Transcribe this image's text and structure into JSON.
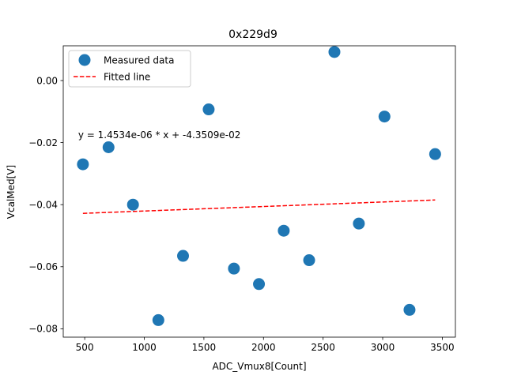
{
  "chart_data": {
    "type": "scatter",
    "title": "0x229d9",
    "xlabel": "ADC_Vmux8[Count]",
    "ylabel": "VcalMed[V]",
    "xlim": [
      320,
      3610
    ],
    "ylim": [
      -0.0827,
      0.0112
    ],
    "xticks": [
      {
        "value": 500,
        "label": "500"
      },
      {
        "value": 1000,
        "label": "1000"
      },
      {
        "value": 1500,
        "label": "1500"
      },
      {
        "value": 2000,
        "label": "2000"
      },
      {
        "value": 2500,
        "label": "2500"
      },
      {
        "value": 3000,
        "label": "3000"
      },
      {
        "value": 3500,
        "label": "3500"
      }
    ],
    "yticks": [
      {
        "value": -0.08,
        "label": "−0.08"
      },
      {
        "value": -0.06,
        "label": "−0.06"
      },
      {
        "value": -0.04,
        "label": "−0.04"
      },
      {
        "value": -0.02,
        "label": "−0.02"
      },
      {
        "value": 0.0,
        "label": "0.00"
      }
    ],
    "series": [
      {
        "name": "Measured data",
        "kind": "scatter",
        "color": "#1f77b4",
        "x": [
          485,
          700,
          905,
          1118,
          1325,
          1540,
          1752,
          1962,
          2170,
          2383,
          2595,
          2800,
          3015,
          3225,
          3440
        ],
        "y": [
          -0.027,
          -0.0215,
          -0.04,
          -0.0772,
          -0.0565,
          -0.0093,
          -0.0606,
          -0.0656,
          -0.0484,
          -0.0579,
          0.0092,
          -0.0461,
          -0.0116,
          -0.0739,
          -0.0237
        ]
      },
      {
        "name": "Fitted line",
        "kind": "line",
        "style": "dashed",
        "color": "#ff0000",
        "x": [
          485,
          3440
        ],
        "y": [
          -0.0428,
          -0.0385
        ]
      }
    ],
    "annotation": {
      "text": "y = 1.4534e-06 * x + -4.3509e-02",
      "x": 485,
      "y": -0.0175
    },
    "legend": {
      "position": "top-left",
      "entries": [
        "Measured data",
        "Fitted line"
      ]
    }
  }
}
